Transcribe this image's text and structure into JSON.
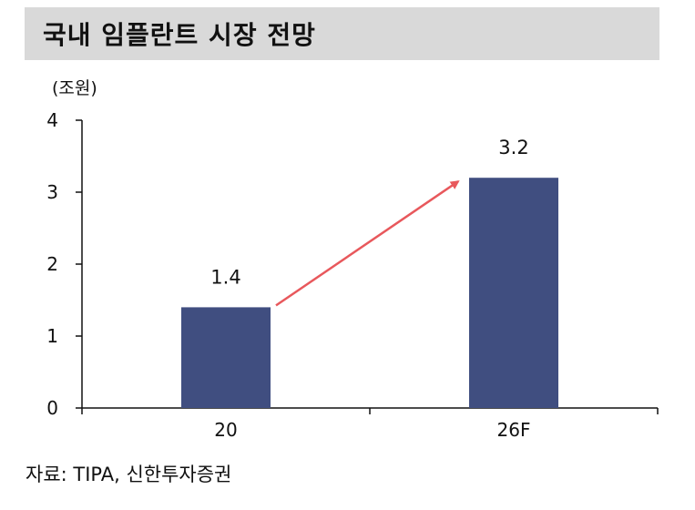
{
  "title": "국내 임플란트 시장 전망",
  "source": "자료: TIPA, 신한투자증권",
  "chart_data": {
    "type": "bar",
    "title": "국내 임플란트 시장 전망",
    "ylabel": "(조원)",
    "xlabel": "",
    "categories": [
      "20",
      "26F"
    ],
    "values": [
      1.4,
      3.2
    ],
    "data_labels": [
      "1.4",
      "3.2"
    ],
    "ylim": [
      0,
      4
    ],
    "yticks": [
      0,
      1,
      2,
      3,
      4
    ],
    "grid": false,
    "legend": "none",
    "bar_color": "#404e80",
    "arrow": {
      "from": "20",
      "to": "26F",
      "color": "#e8585c"
    }
  }
}
